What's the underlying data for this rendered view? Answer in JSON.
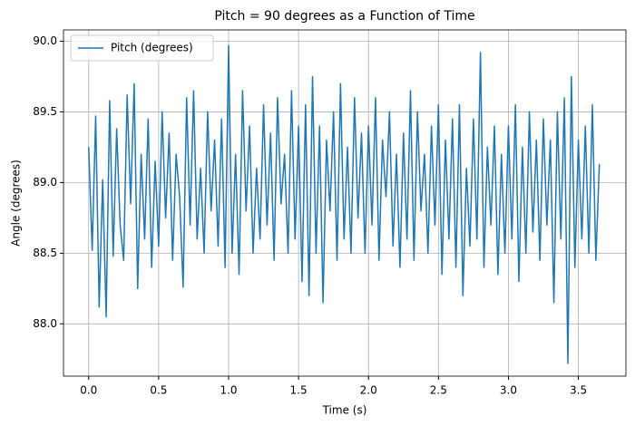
{
  "chart_data": {
    "type": "line",
    "title": "Pitch = 90 degrees as a Function of Time",
    "xlabel": "Time (s)",
    "ylabel": "Angle (degrees)",
    "x": [
      0,
      0.025,
      0.05,
      0.075,
      0.1,
      0.125,
      0.15,
      0.175,
      0.2,
      0.225,
      0.25,
      0.275,
      0.3,
      0.325,
      0.35,
      0.375,
      0.4,
      0.425,
      0.45,
      0.475,
      0.5,
      0.525,
      0.55,
      0.575,
      0.6,
      0.625,
      0.65,
      0.675,
      0.7,
      0.725,
      0.75,
      0.775,
      0.8,
      0.825,
      0.85,
      0.875,
      0.9,
      0.925,
      0.95,
      0.975,
      1,
      1.025,
      1.05,
      1.075,
      1.1,
      1.125,
      1.15,
      1.175,
      1.2,
      1.225,
      1.25,
      1.275,
      1.3,
      1.325,
      1.35,
      1.375,
      1.4,
      1.425,
      1.45,
      1.475,
      1.5,
      1.525,
      1.55,
      1.575,
      1.6,
      1.625,
      1.65,
      1.675,
      1.7,
      1.725,
      1.75,
      1.775,
      1.8,
      1.825,
      1.85,
      1.875,
      1.9,
      1.925,
      1.95,
      1.975,
      2,
      2.025,
      2.05,
      2.075,
      2.1,
      2.125,
      2.15,
      2.175,
      2.2,
      2.225,
      2.25,
      2.275,
      2.3,
      2.325,
      2.35,
      2.375,
      2.4,
      2.425,
      2.45,
      2.475,
      2.5,
      2.525,
      2.55,
      2.575,
      2.6,
      2.625,
      2.65,
      2.675,
      2.7,
      2.725,
      2.75,
      2.775,
      2.8,
      2.825,
      2.85,
      2.875,
      2.9,
      2.925,
      2.95,
      2.975,
      3,
      3.025,
      3.05,
      3.075,
      3.1,
      3.125,
      3.15,
      3.175,
      3.2,
      3.225,
      3.25,
      3.275,
      3.3,
      3.325,
      3.35,
      3.375,
      3.4,
      3.425,
      3.45,
      3.475,
      3.5,
      3.525,
      3.55,
      3.575,
      3.6,
      3.625,
      3.65
    ],
    "series": [
      {
        "name": "Pitch (degrees)",
        "color": "#1f77b4",
        "values": [
          89.25,
          88.52,
          89.47,
          88.12,
          89.02,
          88.05,
          89.58,
          88.48,
          89.38,
          88.7,
          88.45,
          89.62,
          88.85,
          89.7,
          88.25,
          89.2,
          88.6,
          89.45,
          88.4,
          89.15,
          88.55,
          89.5,
          88.75,
          89.35,
          88.45,
          89.2,
          88.9,
          88.26,
          89.6,
          88.7,
          89.65,
          88.6,
          89.1,
          88.5,
          89.5,
          88.8,
          89.3,
          88.55,
          89.45,
          88.4,
          89.97,
          88.5,
          89.2,
          88.35,
          89.65,
          88.8,
          89.4,
          88.5,
          89.1,
          88.6,
          89.55,
          88.7,
          89.35,
          88.45,
          89.6,
          88.85,
          89.2,
          88.5,
          89.65,
          88.6,
          89.4,
          88.3,
          89.55,
          88.2,
          89.75,
          88.5,
          89.4,
          88.15,
          89.3,
          88.8,
          89.5,
          88.45,
          89.7,
          88.6,
          89.25,
          88.5,
          89.6,
          88.75,
          89.35,
          88.5,
          89.4,
          88.7,
          89.6,
          88.45,
          89.3,
          88.9,
          89.5,
          88.55,
          89.2,
          88.4,
          89.35,
          88.6,
          89.65,
          88.45,
          89.5,
          88.8,
          89.2,
          88.5,
          89.4,
          88.7,
          89.55,
          88.35,
          89.3,
          88.6,
          89.45,
          88.4,
          89.55,
          88.2,
          89.1,
          88.55,
          89.45,
          88.6,
          89.92,
          88.4,
          89.25,
          88.7,
          89.4,
          88.35,
          89.2,
          88.5,
          89.4,
          88.6,
          89.55,
          88.3,
          89.25,
          88.5,
          89.5,
          88.65,
          89.3,
          88.45,
          89.45,
          88.7,
          89.3,
          88.15,
          89.5,
          88.6,
          89.6,
          87.72,
          89.75,
          88.4,
          89.3,
          88.6,
          89.4,
          88.5,
          89.55,
          88.45,
          89.13
        ]
      }
    ],
    "xlim": [
      -0.18,
      3.84
    ],
    "ylim": [
      87.63,
      90.08
    ],
    "xticks": [
      {
        "value": 0,
        "label": "0.0"
      },
      0.5,
      {
        "value": 1,
        "label": "1.0"
      },
      1.5,
      {
        "value": 2,
        "label": "2.0"
      },
      2.5,
      {
        "value": 3,
        "label": "3.0"
      },
      3.5
    ],
    "yticks": [
      {
        "value": 88,
        "label": "88.0"
      },
      88.5,
      {
        "value": 89,
        "label": "89.0"
      },
      89.5,
      {
        "value": 90,
        "label": "90.0"
      }
    ],
    "grid": true,
    "legend": "upper left"
  }
}
